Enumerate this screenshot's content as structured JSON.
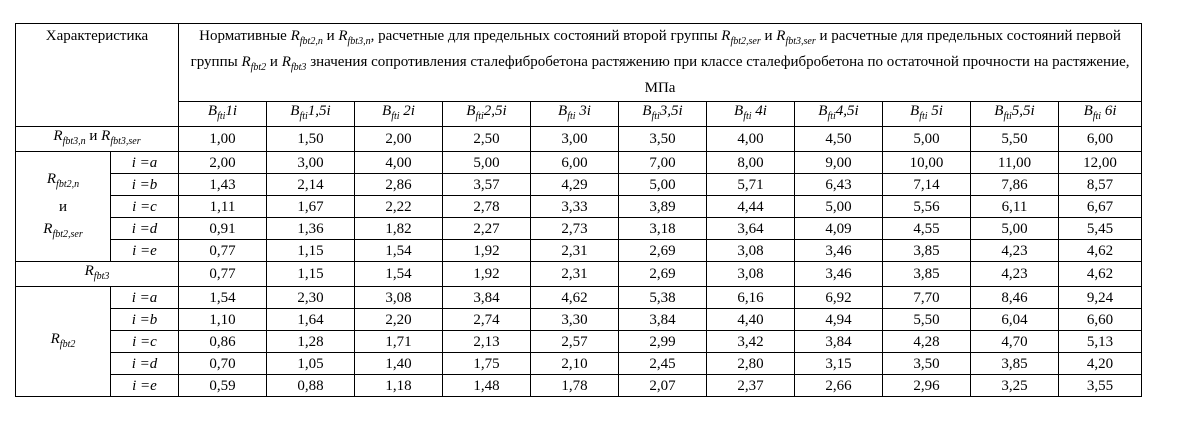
{
  "header": {
    "characteristic": "Характеристика",
    "title_p1": "Нормативные ",
    "sym_n_main": "R",
    "sym_n_sub": "fbt2,n",
    "title_p2": " и ",
    "sym_n3_main": "R",
    "sym_n3_sub": "fbt3,n",
    "title_p3": ", расчетные для предельных состояний второй группы ",
    "sym_ser_main": "R",
    "sym_ser_sub": "fbt2,ser",
    "title_p4": " и ",
    "sym_ser3_main": "R",
    "sym_ser3_sub": "fbt3,ser",
    "title_p5": " и расчетные для предельных состояний первой группы ",
    "sym_2_main": "R",
    "sym_2_sub": "fbt2",
    "title_p6": " и ",
    "sym_3_main": "R",
    "sym_3_sub": "fbt3",
    "title_p7": " значения сопротивления сталефибробетона растяжению  при классе сталефибробетона по остаточной прочности на растяжение,  МПа"
  },
  "classes": [
    {
      "main": "B",
      "sub": "fti",
      "val": "1i"
    },
    {
      "main": "B",
      "sub": "fti",
      "val": "1,5i"
    },
    {
      "main": "B",
      "sub": "fti",
      "val": " 2i"
    },
    {
      "main": "B",
      "sub": "fti",
      "val": "2,5i"
    },
    {
      "main": "B",
      "sub": "fti",
      "val": " 3i"
    },
    {
      "main": "B",
      "sub": "fti",
      "val": "3,5i"
    },
    {
      "main": "B",
      "sub": "fti",
      "val": " 4i"
    },
    {
      "main": "B",
      "sub": "fti",
      "val": "4,5i"
    },
    {
      "main": "B",
      "sub": "fti",
      "val": " 5i"
    },
    {
      "main": "B",
      "sub": "fti",
      "val": "5,5i"
    },
    {
      "main": "B",
      "sub": "fti",
      "val": " 6i"
    }
  ],
  "row_n": {
    "sym1_main": "R",
    "sym1_sub": "fbt3,n",
    "conj": " и ",
    "sym2_main": "R",
    "sym2_sub": "fbt3,ser",
    "values": [
      "1,00",
      "1,50",
      "2,00",
      "2,50",
      "3,00",
      "3,50",
      "4,00",
      "4,50",
      "5,00",
      "5,50",
      "6,00"
    ]
  },
  "group_ser": {
    "sym1_main": "R",
    "sym1_sub": "fbt2,n",
    "conj": "и",
    "sym2_main": "R",
    "sym2_sub": "fbt2,ser",
    "rows": [
      {
        "label": "i =a",
        "values": [
          "2,00",
          "3,00",
          "4,00",
          "5,00",
          "6,00",
          "7,00",
          "8,00",
          "9,00",
          "10,00",
          "11,00",
          "12,00"
        ]
      },
      {
        "label": "i =b",
        "values": [
          "1,43",
          "2,14",
          "2,86",
          "3,57",
          "4,29",
          "5,00",
          "5,71",
          "6,43",
          "7,14",
          "7,86",
          "8,57"
        ]
      },
      {
        "label": "i =c",
        "values": [
          "1,11",
          "1,67",
          "2,22",
          "2,78",
          "3,33",
          "3,89",
          "4,44",
          "5,00",
          "5,56",
          "6,11",
          "6,67"
        ]
      },
      {
        "label": "i =d",
        "values": [
          "0,91",
          "1,36",
          "1,82",
          "2,27",
          "2,73",
          "3,18",
          "3,64",
          "4,09",
          "4,55",
          "5,00",
          "5,45"
        ]
      },
      {
        "label": "i =e",
        "values": [
          "0,77",
          "1,15",
          "1,54",
          "1,92",
          "2,31",
          "2,69",
          "3,08",
          "3,46",
          "3,85",
          "4,23",
          "4,62"
        ]
      }
    ]
  },
  "row_fbt3": {
    "sym_main": "R",
    "sym_sub": "fbt3",
    "values": [
      "0,77",
      "1,15",
      "1,54",
      "1,92",
      "2,31",
      "2,69",
      "3,08",
      "3,46",
      "3,85",
      "4,23",
      "4,62"
    ]
  },
  "group_fbt2": {
    "sym_main": "R",
    "sym_sub": "fbt2",
    "rows": [
      {
        "label": "i =a",
        "values": [
          "1,54",
          "2,30",
          "3,08",
          "3,84",
          "4,62",
          "5,38",
          "6,16",
          "6,92",
          "7,70",
          "8,46",
          "9,24"
        ]
      },
      {
        "label": "i =b",
        "values": [
          "1,10",
          "1,64",
          "2,20",
          "2,74",
          "3,30",
          "3,84",
          "4,40",
          "4,94",
          "5,50",
          "6,04",
          "6,60"
        ]
      },
      {
        "label": "i =c",
        "values": [
          "0,86",
          "1,28",
          "1,71",
          "2,13",
          "2,57",
          "2,99",
          "3,42",
          "3,84",
          "4,28",
          "4,70",
          "5,13"
        ]
      },
      {
        "label": "i =d",
        "values": [
          "0,70",
          "1,05",
          "1,40",
          "1,75",
          "2,10",
          "2,45",
          "2,80",
          "3,15",
          "3,50",
          "3,85",
          "4,20"
        ]
      },
      {
        "label": "i =e",
        "values": [
          "0,59",
          "0,88",
          "1,18",
          "1,48",
          "1,78",
          "2,07",
          "2,37",
          "2,66",
          "2,96",
          "3,25",
          "3,55"
        ]
      }
    ]
  }
}
